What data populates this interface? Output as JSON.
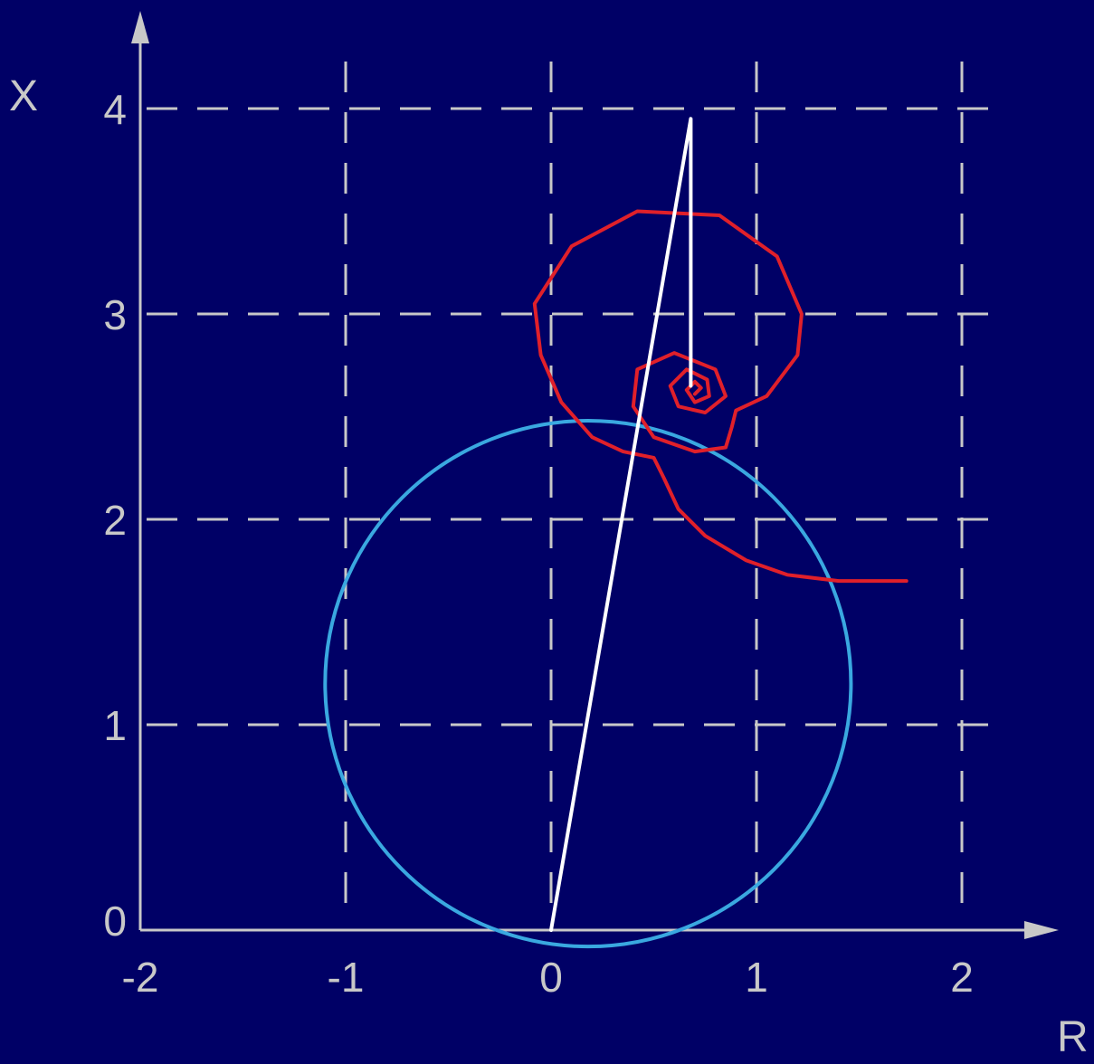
{
  "chart_data": {
    "type": "line",
    "title": "",
    "xlabel": "R",
    "ylabel": "X",
    "xlim": [
      -2,
      2.3
    ],
    "ylim": [
      0,
      4.3
    ],
    "x_ticks": [
      "-2",
      "-1",
      "0",
      "1",
      "2"
    ],
    "y_ticks": [
      "0",
      "1",
      "2",
      "3",
      "4"
    ],
    "grid": true,
    "colors": {
      "background": "#000066",
      "axes": "#c8c8c8",
      "circle": "#3aa8e0",
      "spiral": "#e0202a",
      "radial_line": "#ffffff"
    },
    "series": [
      {
        "kind": "circle",
        "color": "#3aa8e0",
        "center": [
          0.18,
          1.2
        ],
        "radius": 1.28
      },
      {
        "kind": "polyline",
        "color": "#e0202a",
        "points": [
          [
            1.73,
            1.7
          ],
          [
            1.4,
            1.7
          ],
          [
            1.15,
            1.73
          ],
          [
            0.95,
            1.8
          ],
          [
            0.75,
            1.92
          ],
          [
            0.62,
            2.05
          ],
          [
            0.55,
            2.2
          ],
          [
            0.5,
            2.3
          ],
          [
            0.35,
            2.33
          ],
          [
            0.2,
            2.4
          ],
          [
            0.05,
            2.57
          ],
          [
            -0.05,
            2.8
          ],
          [
            -0.08,
            3.05
          ],
          [
            0.1,
            3.33
          ],
          [
            0.42,
            3.5
          ],
          [
            0.82,
            3.48
          ],
          [
            1.1,
            3.28
          ],
          [
            1.22,
            3.0
          ],
          [
            1.2,
            2.8
          ],
          [
            1.05,
            2.6
          ],
          [
            0.9,
            2.53
          ],
          [
            0.88,
            2.45
          ],
          [
            0.85,
            2.35
          ],
          [
            0.7,
            2.33
          ],
          [
            0.5,
            2.4
          ],
          [
            0.4,
            2.55
          ],
          [
            0.42,
            2.73
          ],
          [
            0.6,
            2.81
          ],
          [
            0.8,
            2.73
          ],
          [
            0.85,
            2.6
          ],
          [
            0.75,
            2.52
          ],
          [
            0.62,
            2.55
          ],
          [
            0.58,
            2.65
          ],
          [
            0.66,
            2.73
          ],
          [
            0.76,
            2.68
          ],
          [
            0.77,
            2.6
          ],
          [
            0.7,
            2.57
          ],
          [
            0.66,
            2.63
          ],
          [
            0.7,
            2.67
          ],
          [
            0.73,
            2.64
          ],
          [
            0.7,
            2.61
          ]
        ]
      },
      {
        "kind": "polyline",
        "color": "#ffffff",
        "points": [
          [
            0.0,
            0.0
          ],
          [
            0.68,
            3.95
          ],
          [
            0.68,
            2.65
          ]
        ]
      }
    ]
  }
}
